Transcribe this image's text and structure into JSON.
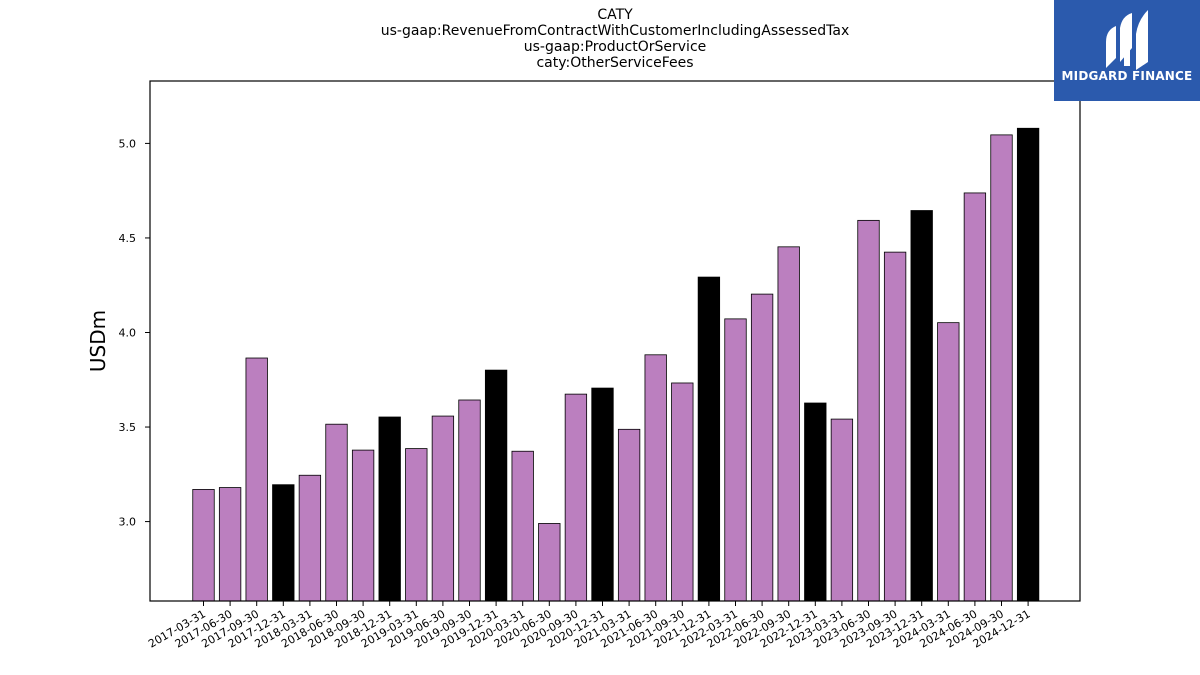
{
  "header": {
    "title_lines": [
      "CATY",
      "us-gaap:RevenueFromContractWithCustomerIncludingAssessedTax",
      "us-gaap:ProductOrService",
      "caty:OtherServiceFees"
    ]
  },
  "logo": {
    "text": "MIDGARD FINANCE",
    "color": "#2b5aad"
  },
  "chart_data": {
    "type": "bar",
    "title": "CATY us-gaap:RevenueFromContractWithCustomerIncludingAssessedTax us-gaap:ProductOrService caty:OtherServiceFees",
    "ylabel": "USDm",
    "xlabel": "",
    "ylim": [
      2.58,
      5.33
    ],
    "yticks": [
      3.0,
      3.5,
      4.0,
      4.5,
      5.0
    ],
    "ytick_labels": [
      "3.0",
      "3.5",
      "4.0",
      "4.5",
      "5.0"
    ],
    "categories": [
      "2017-03-31",
      "2017-06-30",
      "2017-09-30",
      "2017-12-31",
      "2018-03-31",
      "2018-06-30",
      "2018-09-30",
      "2018-12-31",
      "2019-03-31",
      "2019-06-30",
      "2019-09-30",
      "2019-12-31",
      "2020-03-31",
      "2020-06-30",
      "2020-09-30",
      "2020-12-31",
      "2021-03-31",
      "2021-06-30",
      "2021-09-30",
      "2021-12-31",
      "2022-03-31",
      "2022-06-30",
      "2022-09-30",
      "2022-12-31",
      "2023-03-31",
      "2023-06-30",
      "2023-09-30",
      "2023-12-31",
      "2024-03-31",
      "2024-06-30",
      "2024-09-30",
      "2024-12-31"
    ],
    "values": [
      3.17,
      3.18,
      3.865,
      3.195,
      3.245,
      3.515,
      3.378,
      3.553,
      3.386,
      3.558,
      3.643,
      3.801,
      3.372,
      2.99,
      3.674,
      3.706,
      3.488,
      3.882,
      3.733,
      4.293,
      4.072,
      4.203,
      4.453,
      3.627,
      3.542,
      4.593,
      4.425,
      4.645,
      4.052,
      4.738,
      5.045,
      5.08
    ],
    "colors": {
      "quarterly": "#bb7fbf",
      "year_end": "#000000"
    },
    "grid": false,
    "legend": "none"
  }
}
